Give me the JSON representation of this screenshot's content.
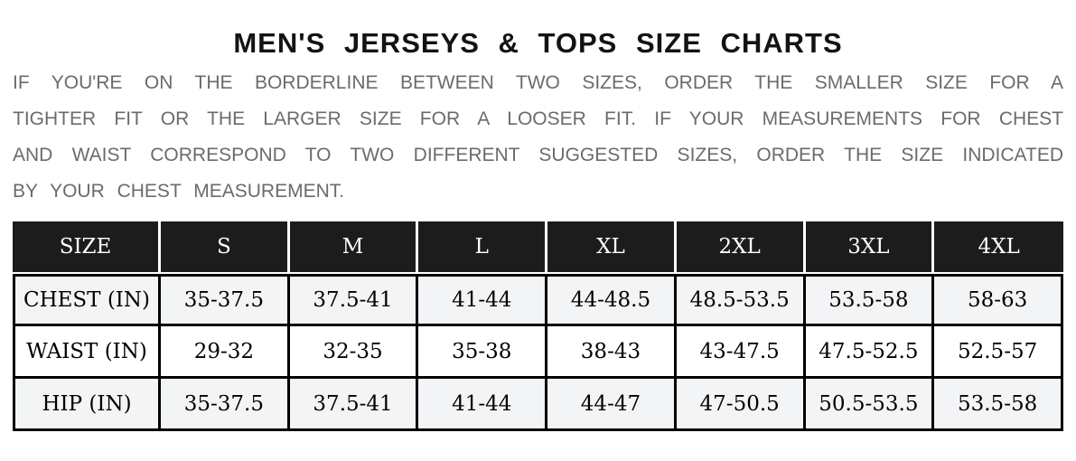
{
  "title": "MEN'S JERSEYS & TOPS SIZE CHARTS",
  "intro": {
    "lines": [
      "IF YOU'RE ON THE BORDERLINE BETWEEN TWO SIZES, ORDER THE SMALLER SIZE FOR A",
      "TIGHTER FIT OR THE LARGER SIZE FOR A LOOSER FIT. IF YOUR MEASUREMENTS FOR CHEST",
      "AND WAIST CORRESPOND TO TWO DIFFERENT SUGGESTED SIZES, ORDER THE SIZE INDICATED",
      "BY YOUR CHEST MEASUREMENT."
    ]
  },
  "size_chart": {
    "columns": [
      "SIZE",
      "S",
      "M",
      "L",
      "XL",
      "2XL",
      "3XL",
      "4XL"
    ],
    "rows": [
      {
        "label": "CHEST (IN)",
        "values": [
          "35-37.5",
          "37.5-41",
          "41-44",
          "44-48.5",
          "48.5-53.5",
          "53.5-58",
          "58-63"
        ]
      },
      {
        "label": "WAIST (IN)",
        "values": [
          "29-32",
          "32-35",
          "35-38",
          "38-43",
          "43-47.5",
          "47.5-52.5",
          "52.5-57"
        ]
      },
      {
        "label": "HIP (IN)",
        "values": [
          "35-37.5",
          "37.5-41",
          "41-44",
          "44-47",
          "47-50.5",
          "50.5-53.5",
          "53.5-58"
        ]
      }
    ]
  },
  "colors": {
    "header_bg": "#1c1c1c",
    "header_text": "#ffffff",
    "border": "#000000",
    "shaded_row_bg": "#f3f4f6",
    "intro_text": "#6b6b6d",
    "title_text": "#131313",
    "page_bg": "#ffffff"
  }
}
